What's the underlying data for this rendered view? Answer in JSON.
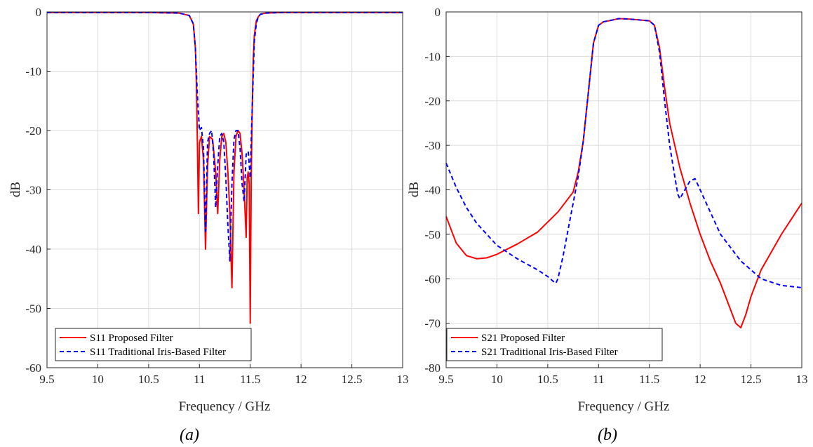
{
  "chart_data": [
    {
      "type": "line",
      "caption": "(a)",
      "xlabel": "Frequency / GHz",
      "ylabel": "dB",
      "xlim": [
        9.5,
        13
      ],
      "ylim": [
        -60,
        0
      ],
      "xticks": [
        "9.5",
        "10",
        "10.5",
        "11",
        "11.5",
        "12",
        "12.5",
        "13"
      ],
      "yticks": [
        "0",
        "-10",
        "-20",
        "-30",
        "-40",
        "-50",
        "-60"
      ],
      "grid": true,
      "legend_position": "bottom-left",
      "series": [
        {
          "name": "S11 Proposed Filter",
          "color": "#ff0000",
          "style": "solid",
          "x": [
            9.5,
            10.0,
            10.5,
            10.8,
            10.9,
            10.94,
            10.96,
            10.97,
            10.98,
            10.99,
            11.0,
            11.02,
            11.04,
            11.06,
            11.08,
            11.1,
            11.13,
            11.16,
            11.18,
            11.2,
            11.22,
            11.24,
            11.26,
            11.28,
            11.3,
            11.32,
            11.34,
            11.36,
            11.38,
            11.4,
            11.42,
            11.44,
            11.46,
            11.47,
            11.48,
            11.49,
            11.5,
            11.51,
            11.52,
            11.53,
            11.54,
            11.56,
            11.58,
            11.6,
            11.65,
            11.8,
            12.0,
            12.5,
            13.0
          ],
          "y": [
            -0.1,
            -0.1,
            -0.1,
            -0.2,
            -0.6,
            -2,
            -6,
            -12,
            -22,
            -34,
            -22,
            -21,
            -25,
            -40,
            -26,
            -21,
            -21.5,
            -27,
            -34,
            -25,
            -21,
            -20.5,
            -22,
            -27,
            -34,
            -46.5,
            -27,
            -21,
            -20,
            -20.5,
            -24,
            -30,
            -38,
            -28,
            -27,
            -29,
            -52.5,
            -28,
            -16,
            -8,
            -4,
            -1.5,
            -0.8,
            -0.4,
            -0.2,
            -0.1,
            -0.1,
            -0.1,
            -0.1
          ]
        },
        {
          "name": "S11 Traditional Iris-Based Filter",
          "color": "#0000ff",
          "style": "dashed",
          "x": [
            9.5,
            10.0,
            10.5,
            10.8,
            10.9,
            10.94,
            10.96,
            10.98,
            11.0,
            11.02,
            11.04,
            11.06,
            11.08,
            11.1,
            11.12,
            11.14,
            11.16,
            11.18,
            11.2,
            11.22,
            11.24,
            11.26,
            11.28,
            11.3,
            11.32,
            11.34,
            11.36,
            11.38,
            11.4,
            11.42,
            11.44,
            11.46,
            11.48,
            11.5,
            11.52,
            11.54,
            11.56,
            11.58,
            11.6,
            11.65,
            11.8,
            12.0,
            12.5,
            13.0
          ],
          "y": [
            -0.1,
            -0.1,
            -0.1,
            -0.2,
            -0.6,
            -2,
            -6,
            -14,
            -20,
            -19.5,
            -23,
            -37,
            -22,
            -20.5,
            -20,
            -24,
            -33,
            -26,
            -21,
            -20.5,
            -22,
            -28,
            -36,
            -42,
            -29,
            -21.5,
            -20,
            -20,
            -23,
            -29,
            -32,
            -24,
            -23.5,
            -28,
            -16,
            -5,
            -2,
            -0.8,
            -0.4,
            -0.2,
            -0.1,
            -0.1,
            -0.1,
            -0.1
          ]
        }
      ]
    },
    {
      "type": "line",
      "caption": "(b)",
      "xlabel": "Frequency / GHz",
      "ylabel": "dB",
      "xlim": [
        9.5,
        13
      ],
      "ylim": [
        -80,
        0
      ],
      "xticks": [
        "9.5",
        "10",
        "10.5",
        "11",
        "11.5",
        "12",
        "12.5",
        "13"
      ],
      "yticks": [
        "0",
        "-10",
        "-20",
        "-30",
        "-40",
        "-50",
        "-60",
        "-70",
        "-80"
      ],
      "grid": true,
      "legend_position": "bottom-left",
      "series": [
        {
          "name": "S21 Proposed Filter",
          "color": "#ff0000",
          "style": "solid",
          "x": [
            9.5,
            9.6,
            9.7,
            9.8,
            9.9,
            10.0,
            10.2,
            10.4,
            10.6,
            10.7,
            10.75,
            10.8,
            10.85,
            10.9,
            10.95,
            11.0,
            11.05,
            11.1,
            11.2,
            11.3,
            11.4,
            11.5,
            11.55,
            11.6,
            11.65,
            11.7,
            11.8,
            11.9,
            12.0,
            12.1,
            12.2,
            12.3,
            12.35,
            12.4,
            12.45,
            12.5,
            12.6,
            12.7,
            12.8,
            12.9,
            13.0
          ],
          "y": [
            -46,
            -52,
            -54.8,
            -55.5,
            -55.3,
            -54.5,
            -52.2,
            -49.5,
            -45,
            -42,
            -40.5,
            -36,
            -29,
            -18,
            -7,
            -3,
            -2.2,
            -2,
            -1.5,
            -1.6,
            -1.8,
            -2,
            -3,
            -8,
            -17,
            -25,
            -35,
            -43,
            -50,
            -56,
            -61,
            -67,
            -70,
            -71,
            -68,
            -64,
            -58,
            -54,
            -50,
            -46.5,
            -43
          ]
        },
        {
          "name": "S21 Traditional Iris-Based Filter",
          "color": "#0000ff",
          "style": "dashed",
          "x": [
            9.5,
            9.6,
            9.7,
            9.8,
            9.9,
            10.0,
            10.2,
            10.4,
            10.5,
            10.55,
            10.58,
            10.6,
            10.65,
            10.7,
            10.75,
            10.8,
            10.85,
            10.9,
            10.95,
            11.0,
            11.05,
            11.1,
            11.2,
            11.3,
            11.4,
            11.5,
            11.55,
            11.6,
            11.65,
            11.7,
            11.75,
            11.78,
            11.8,
            11.85,
            11.9,
            11.95,
            12.0,
            12.1,
            12.2,
            12.4,
            12.6,
            12.8,
            13.0
          ],
          "y": [
            -34,
            -39.5,
            -44,
            -47.5,
            -50,
            -52.5,
            -55.5,
            -58,
            -59.5,
            -60.5,
            -61,
            -60,
            -55,
            -49,
            -43,
            -37,
            -29,
            -18,
            -7,
            -3,
            -2.2,
            -2,
            -1.5,
            -1.6,
            -1.8,
            -2,
            -3,
            -9,
            -20,
            -30,
            -37,
            -41,
            -42,
            -40,
            -38,
            -37.5,
            -40,
            -45,
            -50,
            -56,
            -60,
            -61.5,
            -62
          ]
        }
      ]
    }
  ]
}
